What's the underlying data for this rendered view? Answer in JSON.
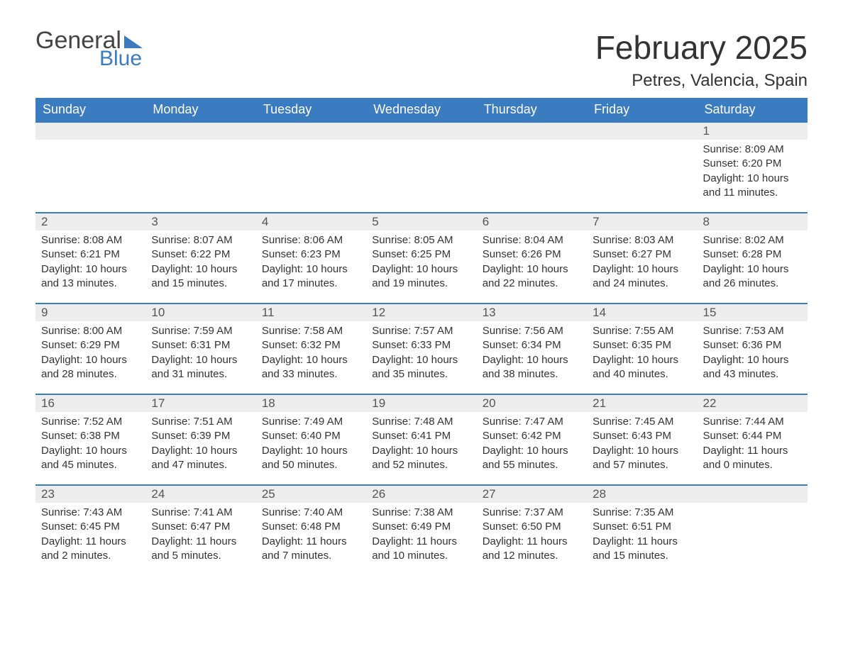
{
  "logo": {
    "word1": "General",
    "word2": "Blue"
  },
  "title": "February 2025",
  "location": "Petres, Valencia, Spain",
  "colors": {
    "header_bg": "#3b7bbf",
    "header_text": "#ffffff",
    "daynum_bg": "#ededed",
    "daynum_border": "#3b7bbf",
    "body_text": "#333333",
    "logo_gray": "#444444",
    "logo_blue": "#3b7bbf",
    "background": "#ffffff"
  },
  "typography": {
    "title_fontsize": 46,
    "location_fontsize": 24,
    "header_fontsize": 18,
    "daynum_fontsize": 17,
    "body_fontsize": 15,
    "font_family": "Arial"
  },
  "layout": {
    "columns": 7,
    "rows": 5,
    "first_day_column_index": 6
  },
  "weekdays": [
    "Sunday",
    "Monday",
    "Tuesday",
    "Wednesday",
    "Thursday",
    "Friday",
    "Saturday"
  ],
  "grid": [
    [
      null,
      null,
      null,
      null,
      null,
      null,
      {
        "n": "1",
        "sunrise": "Sunrise: 8:09 AM",
        "sunset": "Sunset: 6:20 PM",
        "day1": "Daylight: 10 hours",
        "day2": "and 11 minutes."
      }
    ],
    [
      {
        "n": "2",
        "sunrise": "Sunrise: 8:08 AM",
        "sunset": "Sunset: 6:21 PM",
        "day1": "Daylight: 10 hours",
        "day2": "and 13 minutes."
      },
      {
        "n": "3",
        "sunrise": "Sunrise: 8:07 AM",
        "sunset": "Sunset: 6:22 PM",
        "day1": "Daylight: 10 hours",
        "day2": "and 15 minutes."
      },
      {
        "n": "4",
        "sunrise": "Sunrise: 8:06 AM",
        "sunset": "Sunset: 6:23 PM",
        "day1": "Daylight: 10 hours",
        "day2": "and 17 minutes."
      },
      {
        "n": "5",
        "sunrise": "Sunrise: 8:05 AM",
        "sunset": "Sunset: 6:25 PM",
        "day1": "Daylight: 10 hours",
        "day2": "and 19 minutes."
      },
      {
        "n": "6",
        "sunrise": "Sunrise: 8:04 AM",
        "sunset": "Sunset: 6:26 PM",
        "day1": "Daylight: 10 hours",
        "day2": "and 22 minutes."
      },
      {
        "n": "7",
        "sunrise": "Sunrise: 8:03 AM",
        "sunset": "Sunset: 6:27 PM",
        "day1": "Daylight: 10 hours",
        "day2": "and 24 minutes."
      },
      {
        "n": "8",
        "sunrise": "Sunrise: 8:02 AM",
        "sunset": "Sunset: 6:28 PM",
        "day1": "Daylight: 10 hours",
        "day2": "and 26 minutes."
      }
    ],
    [
      {
        "n": "9",
        "sunrise": "Sunrise: 8:00 AM",
        "sunset": "Sunset: 6:29 PM",
        "day1": "Daylight: 10 hours",
        "day2": "and 28 minutes."
      },
      {
        "n": "10",
        "sunrise": "Sunrise: 7:59 AM",
        "sunset": "Sunset: 6:31 PM",
        "day1": "Daylight: 10 hours",
        "day2": "and 31 minutes."
      },
      {
        "n": "11",
        "sunrise": "Sunrise: 7:58 AM",
        "sunset": "Sunset: 6:32 PM",
        "day1": "Daylight: 10 hours",
        "day2": "and 33 minutes."
      },
      {
        "n": "12",
        "sunrise": "Sunrise: 7:57 AM",
        "sunset": "Sunset: 6:33 PM",
        "day1": "Daylight: 10 hours",
        "day2": "and 35 minutes."
      },
      {
        "n": "13",
        "sunrise": "Sunrise: 7:56 AM",
        "sunset": "Sunset: 6:34 PM",
        "day1": "Daylight: 10 hours",
        "day2": "and 38 minutes."
      },
      {
        "n": "14",
        "sunrise": "Sunrise: 7:55 AM",
        "sunset": "Sunset: 6:35 PM",
        "day1": "Daylight: 10 hours",
        "day2": "and 40 minutes."
      },
      {
        "n": "15",
        "sunrise": "Sunrise: 7:53 AM",
        "sunset": "Sunset: 6:36 PM",
        "day1": "Daylight: 10 hours",
        "day2": "and 43 minutes."
      }
    ],
    [
      {
        "n": "16",
        "sunrise": "Sunrise: 7:52 AM",
        "sunset": "Sunset: 6:38 PM",
        "day1": "Daylight: 10 hours",
        "day2": "and 45 minutes."
      },
      {
        "n": "17",
        "sunrise": "Sunrise: 7:51 AM",
        "sunset": "Sunset: 6:39 PM",
        "day1": "Daylight: 10 hours",
        "day2": "and 47 minutes."
      },
      {
        "n": "18",
        "sunrise": "Sunrise: 7:49 AM",
        "sunset": "Sunset: 6:40 PM",
        "day1": "Daylight: 10 hours",
        "day2": "and 50 minutes."
      },
      {
        "n": "19",
        "sunrise": "Sunrise: 7:48 AM",
        "sunset": "Sunset: 6:41 PM",
        "day1": "Daylight: 10 hours",
        "day2": "and 52 minutes."
      },
      {
        "n": "20",
        "sunrise": "Sunrise: 7:47 AM",
        "sunset": "Sunset: 6:42 PM",
        "day1": "Daylight: 10 hours",
        "day2": "and 55 minutes."
      },
      {
        "n": "21",
        "sunrise": "Sunrise: 7:45 AM",
        "sunset": "Sunset: 6:43 PM",
        "day1": "Daylight: 10 hours",
        "day2": "and 57 minutes."
      },
      {
        "n": "22",
        "sunrise": "Sunrise: 7:44 AM",
        "sunset": "Sunset: 6:44 PM",
        "day1": "Daylight: 11 hours",
        "day2": "and 0 minutes."
      }
    ],
    [
      {
        "n": "23",
        "sunrise": "Sunrise: 7:43 AM",
        "sunset": "Sunset: 6:45 PM",
        "day1": "Daylight: 11 hours",
        "day2": "and 2 minutes."
      },
      {
        "n": "24",
        "sunrise": "Sunrise: 7:41 AM",
        "sunset": "Sunset: 6:47 PM",
        "day1": "Daylight: 11 hours",
        "day2": "and 5 minutes."
      },
      {
        "n": "25",
        "sunrise": "Sunrise: 7:40 AM",
        "sunset": "Sunset: 6:48 PM",
        "day1": "Daylight: 11 hours",
        "day2": "and 7 minutes."
      },
      {
        "n": "26",
        "sunrise": "Sunrise: 7:38 AM",
        "sunset": "Sunset: 6:49 PM",
        "day1": "Daylight: 11 hours",
        "day2": "and 10 minutes."
      },
      {
        "n": "27",
        "sunrise": "Sunrise: 7:37 AM",
        "sunset": "Sunset: 6:50 PM",
        "day1": "Daylight: 11 hours",
        "day2": "and 12 minutes."
      },
      {
        "n": "28",
        "sunrise": "Sunrise: 7:35 AM",
        "sunset": "Sunset: 6:51 PM",
        "day1": "Daylight: 11 hours",
        "day2": "and 15 minutes."
      },
      null
    ]
  ]
}
